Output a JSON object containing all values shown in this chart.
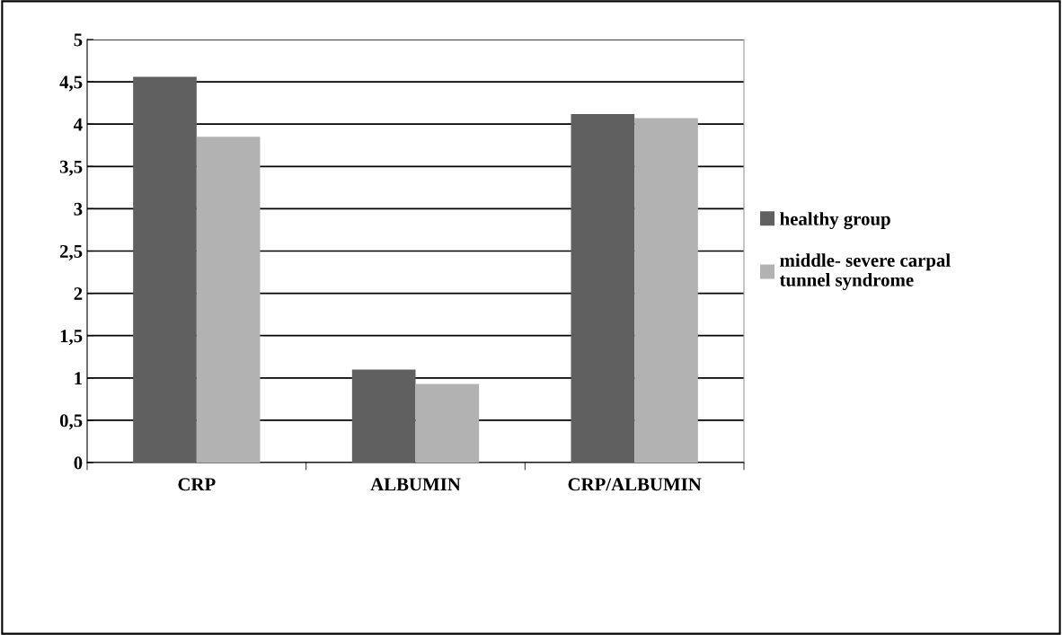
{
  "chart_data": {
    "type": "bar",
    "categories": [
      "CRP",
      "ALBUMIN",
      "CRP/ALBUMIN"
    ],
    "series": [
      {
        "name": "healthy group",
        "color": "#606060",
        "values": [
          4.56,
          1.1,
          4.12
        ]
      },
      {
        "name": "middle- severe carpal tunnel syndrome",
        "color": "#b2b2b2",
        "values": [
          3.85,
          0.93,
          4.07
        ]
      }
    ],
    "ylim": [
      0,
      5
    ],
    "yticks": [
      0,
      {
        "value": 0.5,
        "label": "0,5"
      },
      1,
      {
        "value": 1.5,
        "label": "1,5"
      },
      2,
      {
        "value": 2.5,
        "label": "2,5"
      },
      3,
      {
        "value": 3.5,
        "label": "3,5"
      },
      4,
      {
        "value": 4.5,
        "label": "4,5"
      },
      5
    ],
    "grid": "y",
    "legend": "right"
  }
}
